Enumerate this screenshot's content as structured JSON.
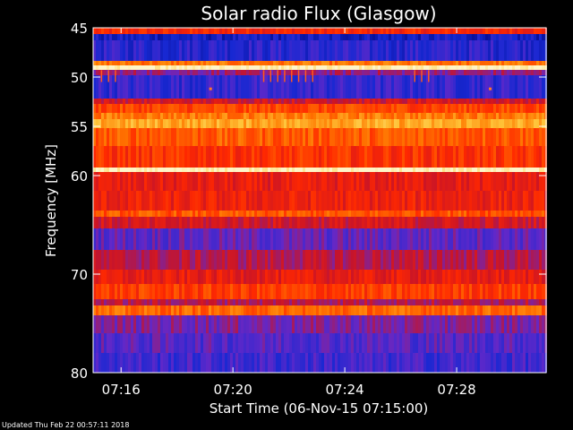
{
  "footer_text": "Updated Thu Feb 22 00:57:11 2018",
  "chart_data": {
    "type": "heatmap",
    "title": "Solar radio Flux (Glasgow)",
    "xlabel": "Start Time (06-Nov-15 07:15:00)",
    "ylabel": "Frequency [MHz]",
    "xlim_minutes": [
      0,
      16.2
    ],
    "ylim": [
      45,
      80
    ],
    "y_scale": "reversed (45 MHz at top, 80 MHz at bottom)",
    "x_ticks": [
      {
        "minute": 1,
        "label": "07:16"
      },
      {
        "minute": 5,
        "label": "07:20"
      },
      {
        "minute": 9,
        "label": "07:24"
      },
      {
        "minute": 13,
        "label": "07:28"
      }
    ],
    "y_ticks": [
      {
        "value": 45,
        "label": "45"
      },
      {
        "value": 50,
        "label": "50"
      },
      {
        "value": 55,
        "label": "55"
      },
      {
        "value": 60,
        "label": "60"
      },
      {
        "value": 70,
        "label": "70"
      },
      {
        "value": 80,
        "label": "80"
      }
    ],
    "colormap": [
      "#000078",
      "#1428d2",
      "#6428c8",
      "#c81428",
      "#ff2800",
      "#ff7800",
      "#ffc83c",
      "#fff5c8"
    ],
    "frequency_bands_mhz": [
      {
        "from": 45.0,
        "to": 45.6,
        "level": 0.55
      },
      {
        "from": 45.6,
        "to": 46.3,
        "level": 0.12
      },
      {
        "from": 46.3,
        "to": 48.4,
        "level": 0.18
      },
      {
        "from": 48.4,
        "to": 48.8,
        "level": 0.7
      },
      {
        "from": 48.8,
        "to": 49.3,
        "level": 1.0
      },
      {
        "from": 49.3,
        "to": 49.8,
        "level": 0.35
      },
      {
        "from": 49.8,
        "to": 52.2,
        "level": 0.2
      },
      {
        "from": 52.2,
        "to": 52.7,
        "level": 0.45
      },
      {
        "from": 52.7,
        "to": 53.6,
        "level": 0.62
      },
      {
        "from": 53.6,
        "to": 54.3,
        "level": 0.72
      },
      {
        "from": 54.3,
        "to": 55.2,
        "level": 0.8
      },
      {
        "from": 55.2,
        "to": 57.0,
        "level": 0.66
      },
      {
        "from": 57.0,
        "to": 59.2,
        "level": 0.58
      },
      {
        "from": 59.2,
        "to": 59.6,
        "level": 1.0
      },
      {
        "from": 59.6,
        "to": 61.5,
        "level": 0.5
      },
      {
        "from": 61.5,
        "to": 63.5,
        "level": 0.52
      },
      {
        "from": 63.5,
        "to": 64.2,
        "level": 0.65
      },
      {
        "from": 64.2,
        "to": 65.4,
        "level": 0.45
      },
      {
        "from": 65.4,
        "to": 67.5,
        "level": 0.28
      },
      {
        "from": 67.5,
        "to": 69.5,
        "level": 0.4
      },
      {
        "from": 69.5,
        "to": 71.0,
        "level": 0.5
      },
      {
        "from": 71.0,
        "to": 72.5,
        "level": 0.6
      },
      {
        "from": 72.5,
        "to": 73.2,
        "level": 0.4
      },
      {
        "from": 73.2,
        "to": 74.2,
        "level": 0.68
      },
      {
        "from": 74.2,
        "to": 76.0,
        "level": 0.32
      },
      {
        "from": 76.0,
        "to": 78.0,
        "level": 0.26
      },
      {
        "from": 78.0,
        "to": 80.0,
        "level": 0.22
      }
    ],
    "impulsive_markers": [
      {
        "minute": 0.3,
        "from": 49.3,
        "to": 50.5
      },
      {
        "minute": 0.55,
        "from": 49.3,
        "to": 50.5
      },
      {
        "minute": 0.8,
        "from": 49.3,
        "to": 50.5
      },
      {
        "minute": 6.1,
        "from": 49.3,
        "to": 50.5
      },
      {
        "minute": 6.35,
        "from": 49.3,
        "to": 50.5
      },
      {
        "minute": 6.6,
        "from": 49.3,
        "to": 50.5
      },
      {
        "minute": 6.85,
        "from": 49.3,
        "to": 50.5
      },
      {
        "minute": 7.1,
        "from": 49.3,
        "to": 50.5
      },
      {
        "minute": 7.35,
        "from": 49.3,
        "to": 50.5
      },
      {
        "minute": 7.6,
        "from": 49.3,
        "to": 50.5
      },
      {
        "minute": 7.85,
        "from": 49.3,
        "to": 50.5
      },
      {
        "minute": 11.5,
        "from": 49.3,
        "to": 50.5
      },
      {
        "minute": 11.75,
        "from": 49.3,
        "to": 50.5
      },
      {
        "minute": 12.0,
        "from": 49.3,
        "to": 50.5
      }
    ],
    "point_markers": [
      {
        "minute": 4.2,
        "mhz": 51.2
      },
      {
        "minute": 14.2,
        "mhz": 51.2
      }
    ]
  }
}
